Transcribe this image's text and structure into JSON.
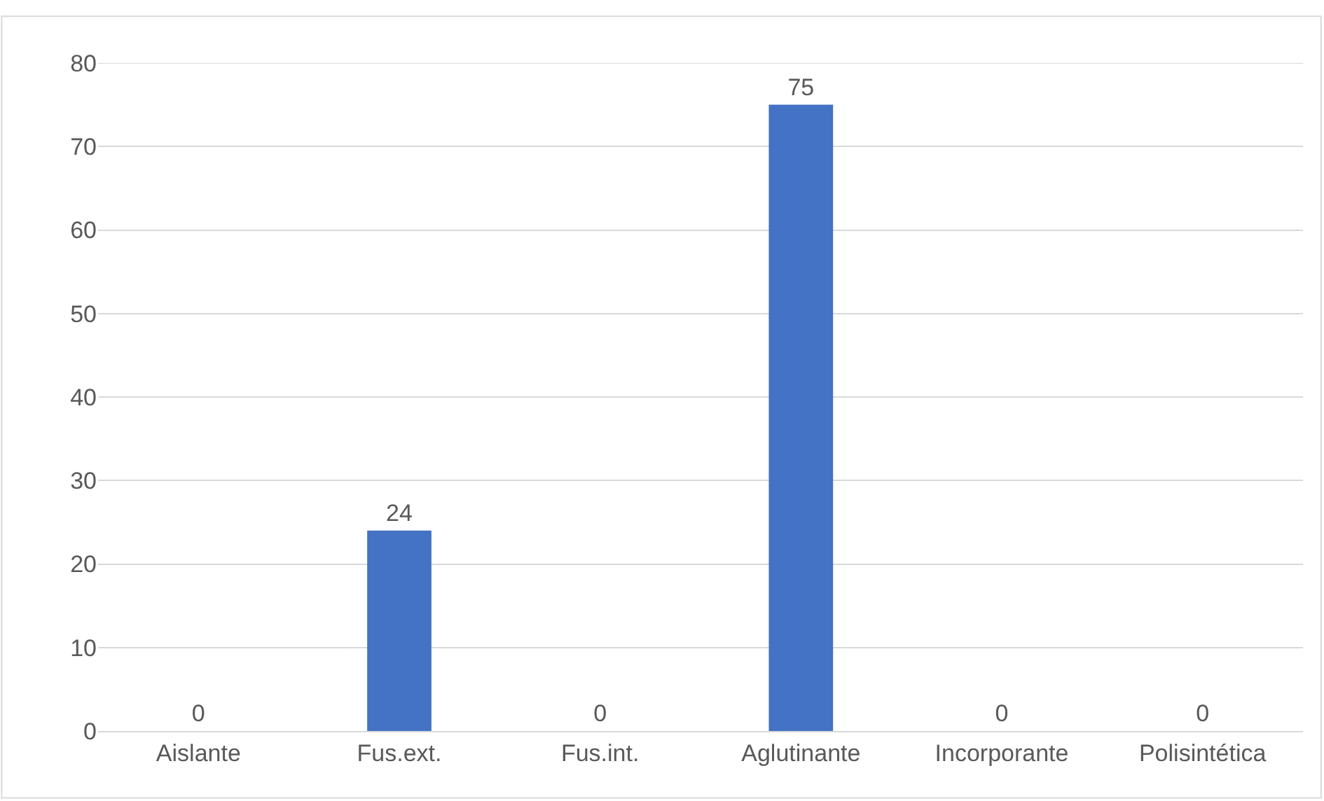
{
  "chart_data": {
    "type": "bar",
    "categories": [
      "Aislante",
      "Fus.ext.",
      "Fus.int.",
      "Aglutinante",
      "Incorporante",
      "Polisintética"
    ],
    "values": [
      0,
      24,
      0,
      75,
      0,
      0
    ],
    "color": "#4472c4",
    "ylim": [
      0,
      80
    ],
    "yticks": [
      0,
      10,
      20,
      30,
      40,
      50,
      60,
      70,
      80
    ],
    "grid": "y",
    "data_labels": true
  }
}
